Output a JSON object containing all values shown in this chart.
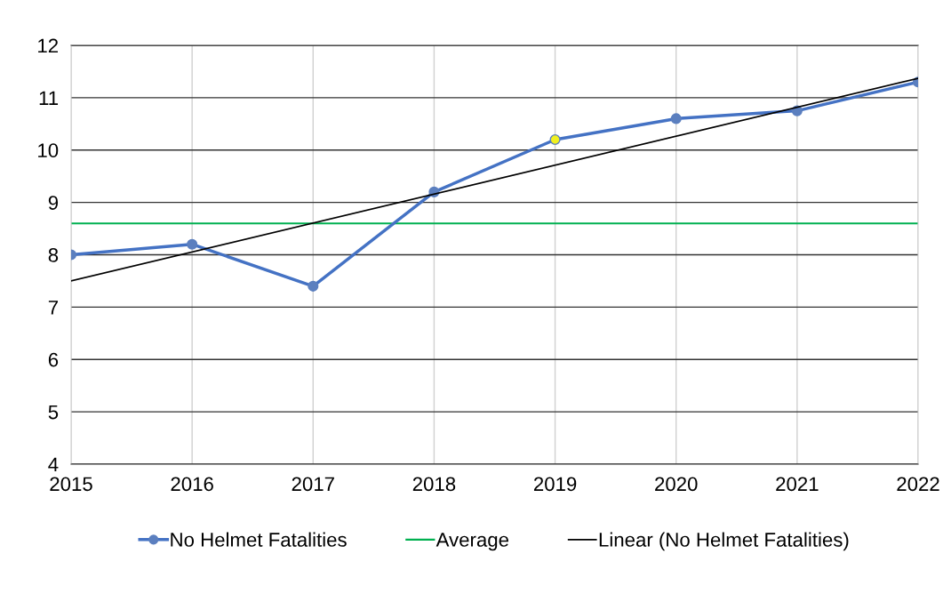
{
  "chart_data": {
    "type": "line",
    "x": [
      2015,
      2016,
      2017,
      2018,
      2019,
      2020,
      2021,
      2022
    ],
    "xlim": [
      2015,
      2022
    ],
    "xticks": [
      2015,
      2016,
      2017,
      2018,
      2019,
      2020,
      2021,
      2022
    ],
    "ylim": [
      4,
      12
    ],
    "yticks": [
      4,
      5,
      6,
      7,
      8,
      9,
      10,
      11,
      12
    ],
    "grid": true,
    "legend": "bottom",
    "marker": "circle",
    "series": [
      {
        "name": "No Helmet Fatalities",
        "color": "#4472c4",
        "colors": [
          "#5b7fbf",
          "#5b7fbf",
          "#5b7fbf",
          "#5b7fbf",
          "#f0f020",
          "#5b7fbf",
          "#5b7fbf",
          "#5b7fbf"
        ],
        "values": [
          8.0,
          8.2,
          7.4,
          9.2,
          10.2,
          10.6,
          10.75,
          11.3
        ]
      },
      {
        "name": "Linear (No Helmet Fatalities)",
        "type": "line",
        "marker": "none",
        "color": "#000000",
        "x": [
          2015,
          2022
        ],
        "values": [
          7.5,
          11.37
        ]
      }
    ],
    "ref_lines": [
      {
        "axis": "y",
        "value": 8.6,
        "label": "Average",
        "color": "#00b050"
      }
    ]
  }
}
